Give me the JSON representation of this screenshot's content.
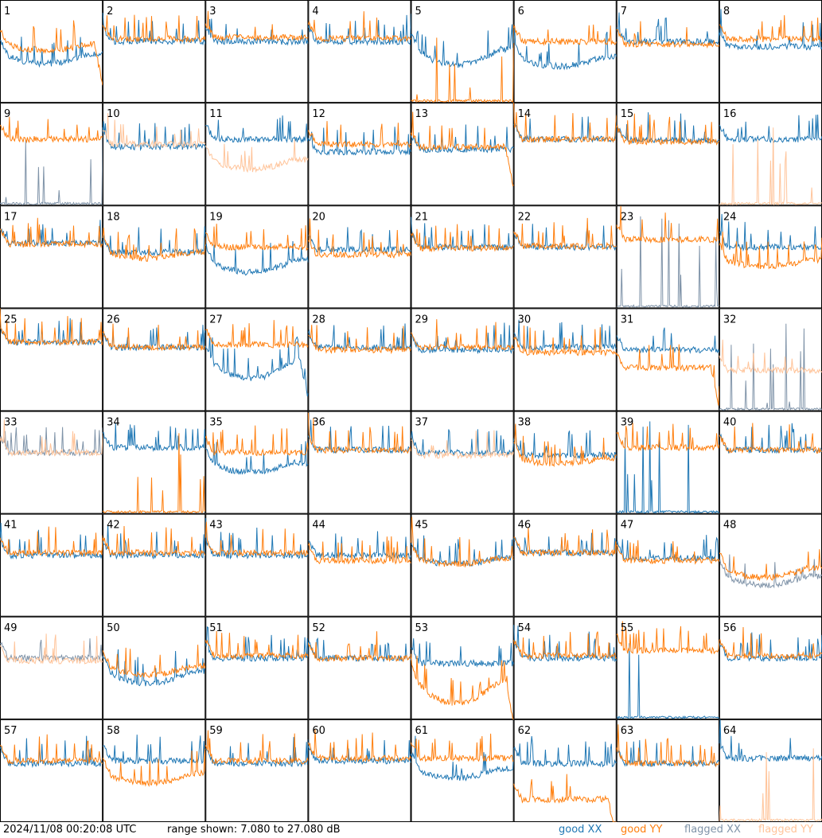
{
  "footer": {
    "timestamp": "2024/11/08 00:20:08 UTC",
    "range_text": "range shown: 7.080 to 27.080 dB"
  },
  "legend": [
    {
      "label": "good XX",
      "color": "#1f77b4"
    },
    {
      "label": "good YY",
      "color": "#ff7f0e"
    },
    {
      "label": "flagged XX",
      "color": "#7f93a8"
    },
    {
      "label": "flagged YY",
      "color": "#ffc49a"
    }
  ],
  "chart_data": {
    "type": "line",
    "ylim": [
      7.08,
      27.08
    ],
    "ylabel_unit": "dB",
    "panels": [
      {
        "id": "1",
        "xx": "good",
        "yy": "good",
        "xx_level": 16.5,
        "yy_level": 18.5,
        "xx_dip": 0.3,
        "yy_dip": 0.2,
        "xx_edge_drop": 0,
        "yy_edge_drop": 1
      },
      {
        "id": "2",
        "xx": "good",
        "yy": "good",
        "xx_level": 19.0,
        "yy_level": 19.5
      },
      {
        "id": "3",
        "xx": "good",
        "yy": "good",
        "xx_level": 19.0,
        "yy_level": 19.8
      },
      {
        "id": "4",
        "xx": "good",
        "yy": "good",
        "xx_level": 19.0,
        "yy_level": 19.6
      },
      {
        "id": "5",
        "xx": "good",
        "yy": "spiky",
        "xx_level": 17.5,
        "xx_dip": 0.5
      },
      {
        "id": "6",
        "xx": "good",
        "yy": "good",
        "xx_level": 16.0,
        "yy_level": 19.0,
        "xx_dip": 0.3
      },
      {
        "id": "7",
        "xx": "good",
        "yy": "good",
        "xx_level": 19.0,
        "yy_level": 18.5
      },
      {
        "id": "8",
        "xx": "good",
        "yy": "good",
        "xx_level": 18.0,
        "yy_level": 19.5
      },
      {
        "id": "9",
        "xx": "flagged_spiky",
        "yy": "good",
        "yy_level": 20.0
      },
      {
        "id": "10",
        "xx": "good",
        "yy": "flagged",
        "xx_level": 18.5,
        "yy_level": 19.0
      },
      {
        "id": "11",
        "xx": "good",
        "yy": "flagged",
        "xx_level": 20.0,
        "yy_level": 16.0,
        "yy_dip": 0.3
      },
      {
        "id": "12",
        "xx": "good",
        "yy": "good",
        "xx_level": 17.5,
        "yy_level": 19.0
      },
      {
        "id": "13",
        "xx": "good",
        "yy": "good",
        "xx_level": 18.0,
        "yy_level": 18.5,
        "yy_edge_drop": 1
      },
      {
        "id": "14",
        "xx": "good",
        "yy": "good",
        "xx_level": 20.0,
        "yy_level": 20.0
      },
      {
        "id": "15",
        "xx": "good",
        "yy": "good",
        "xx_level": 19.8,
        "yy_level": 19.5
      },
      {
        "id": "16",
        "xx": "good",
        "yy": "flagged_spiky",
        "xx_level": 20.0
      },
      {
        "id": "17",
        "xx": "good",
        "yy": "good",
        "xx_level": 19.8,
        "yy_level": 19.6
      },
      {
        "id": "18",
        "xx": "good",
        "yy": "good",
        "xx_level": 18.0,
        "yy_level": 18.0,
        "yy_dip": 0.2
      },
      {
        "id": "19",
        "xx": "good",
        "yy": "good",
        "xx_level": 16.5,
        "yy_level": 19.0,
        "xx_dip": 0.4
      },
      {
        "id": "20",
        "xx": "good",
        "yy": "good",
        "xx_level": 18.5,
        "yy_level": 17.5
      },
      {
        "id": "21",
        "xx": "good",
        "yy": "good",
        "xx_level": 19.0,
        "yy_level": 18.8
      },
      {
        "id": "22",
        "xx": "good",
        "yy": "good",
        "xx_level": 19.0,
        "yy_level": 19.2
      },
      {
        "id": "23",
        "xx": "flagged_spiky",
        "yy": "good",
        "yy_level": 20.5
      },
      {
        "id": "24",
        "xx": "good",
        "yy": "good",
        "xx_level": 19.0,
        "yy_level": 16.5,
        "yy_dip": 0.2
      },
      {
        "id": "25",
        "xx": "good",
        "yy": "good",
        "xx_level": 20.5,
        "yy_level": 20.5
      },
      {
        "id": "26",
        "xx": "good",
        "yy": "good",
        "xx_level": 19.5,
        "yy_level": 19.5
      },
      {
        "id": "27",
        "xx": "good",
        "yy": "good",
        "xx_level": 17.0,
        "yy_level": 20.0,
        "xx_dip": 0.6,
        "xx_edge_drop": 1
      },
      {
        "id": "28",
        "xx": "good",
        "yy": "good",
        "xx_level": 19.5,
        "yy_level": 19.0
      },
      {
        "id": "29",
        "xx": "good",
        "yy": "good",
        "xx_level": 19.0,
        "yy_level": 19.5
      },
      {
        "id": "30",
        "xx": "good",
        "yy": "good",
        "xx_level": 19.5,
        "yy_level": 18.5
      },
      {
        "id": "31",
        "xx": "good",
        "yy": "good",
        "xx_level": 19.0,
        "yy_level": 15.5,
        "yy_edge_drop": 1
      },
      {
        "id": "32",
        "xx": "flagged_spiky",
        "yy": "flagged",
        "yy_level": 15.0
      },
      {
        "id": "33",
        "xx": "flagged",
        "yy": "flagged",
        "xx_level": 19.0,
        "yy_level": 19.0
      },
      {
        "id": "34",
        "xx": "good",
        "yy": "spiky",
        "xx_level": 20.0
      },
      {
        "id": "35",
        "xx": "good",
        "yy": "good",
        "xx_level": 17.0,
        "yy_level": 19.0,
        "xx_dip": 0.3
      },
      {
        "id": "36",
        "xx": "good",
        "yy": "good",
        "xx_level": 19.5,
        "yy_level": 19.5
      },
      {
        "id": "37",
        "xx": "good",
        "yy": "flagged",
        "xx_level": 19.0,
        "yy_level": 18.5
      },
      {
        "id": "38",
        "xx": "good",
        "yy": "good",
        "xx_level": 18.5,
        "yy_level": 18.0,
        "yy_dip": 0.2
      },
      {
        "id": "39",
        "xx": "spiky",
        "yy": "good",
        "yy_level": 20.0
      },
      {
        "id": "40",
        "xx": "good",
        "yy": "good",
        "xx_level": 19.5,
        "yy_level": 19.5
      },
      {
        "id": "41",
        "xx": "good",
        "yy": "good",
        "xx_level": 19.0,
        "yy_level": 19.5
      },
      {
        "id": "42",
        "xx": "good",
        "yy": "good",
        "xx_level": 19.0,
        "yy_level": 19.5
      },
      {
        "id": "43",
        "xx": "good",
        "yy": "good",
        "xx_level": 19.0,
        "yy_level": 19.5
      },
      {
        "id": "44",
        "xx": "good",
        "yy": "good",
        "xx_level": 19.0,
        "yy_level": 18.0
      },
      {
        "id": "45",
        "xx": "good",
        "yy": "good",
        "xx_level": 18.5,
        "yy_level": 18.5,
        "xx_dip": 0.2,
        "yy_dip": 0.2
      },
      {
        "id": "46",
        "xx": "good",
        "yy": "good",
        "xx_level": 19.5,
        "yy_level": 19.5
      },
      {
        "id": "47",
        "xx": "good",
        "yy": "good",
        "xx_level": 18.5,
        "yy_level": 18.0
      },
      {
        "id": "48",
        "xx": "flagged",
        "yy": "good",
        "xx_level": 15.0,
        "yy_level": 16.5,
        "xx_dip": 0.3,
        "yy_dip": 0.3
      },
      {
        "id": "49",
        "xx": "flagged",
        "yy": "flagged",
        "xx_level": 19.0,
        "yy_level": 18.5
      },
      {
        "id": "50",
        "xx": "good",
        "yy": "good",
        "xx_level": 16.5,
        "yy_level": 17.5,
        "xx_dip": 0.4,
        "yy_dip": 0.3
      },
      {
        "id": "51",
        "xx": "good",
        "yy": "good",
        "xx_level": 19.0,
        "yy_level": 19.5
      },
      {
        "id": "52",
        "xx": "good",
        "yy": "good",
        "xx_level": 19.0,
        "yy_level": 19.0
      },
      {
        "id": "53",
        "xx": "good",
        "yy": "good",
        "xx_level": 18.0,
        "yy_level": 14.5,
        "yy_dip": 0.7,
        "yy_edge_drop": 1
      },
      {
        "id": "54",
        "xx": "good",
        "yy": "good",
        "xx_level": 19.0,
        "yy_level": 19.5
      },
      {
        "id": "55",
        "xx": "spiky",
        "yy": "good",
        "yy_level": 20.5
      },
      {
        "id": "56",
        "xx": "good",
        "yy": "good",
        "xx_level": 19.0,
        "yy_level": 19.5
      },
      {
        "id": "57",
        "xx": "good",
        "yy": "good",
        "xx_level": 18.5,
        "yy_level": 19.0
      },
      {
        "id": "58",
        "xx": "good",
        "yy": "good",
        "xx_level": 19.0,
        "yy_level": 16.5,
        "yy_dip": 0.3
      },
      {
        "id": "59",
        "xx": "good",
        "yy": "good",
        "xx_level": 18.5,
        "yy_level": 19.0
      },
      {
        "id": "60",
        "xx": "good",
        "yy": "good",
        "xx_level": 19.0,
        "yy_level": 19.5
      },
      {
        "id": "61",
        "xx": "good",
        "yy": "good",
        "xx_level": 17.5,
        "yy_level": 19.5,
        "xx_dip": 0.3
      },
      {
        "id": "62",
        "xx": "good",
        "yy": "good",
        "xx_level": 18.5,
        "yy_level": 11.5,
        "yy_edge_drop": 1
      },
      {
        "id": "63",
        "xx": "good",
        "yy": "good",
        "xx_level": 18.5,
        "yy_level": 18.5
      },
      {
        "id": "64",
        "xx": "good",
        "yy": "flagged_spiky",
        "xx_level": 19.5
      }
    ]
  }
}
